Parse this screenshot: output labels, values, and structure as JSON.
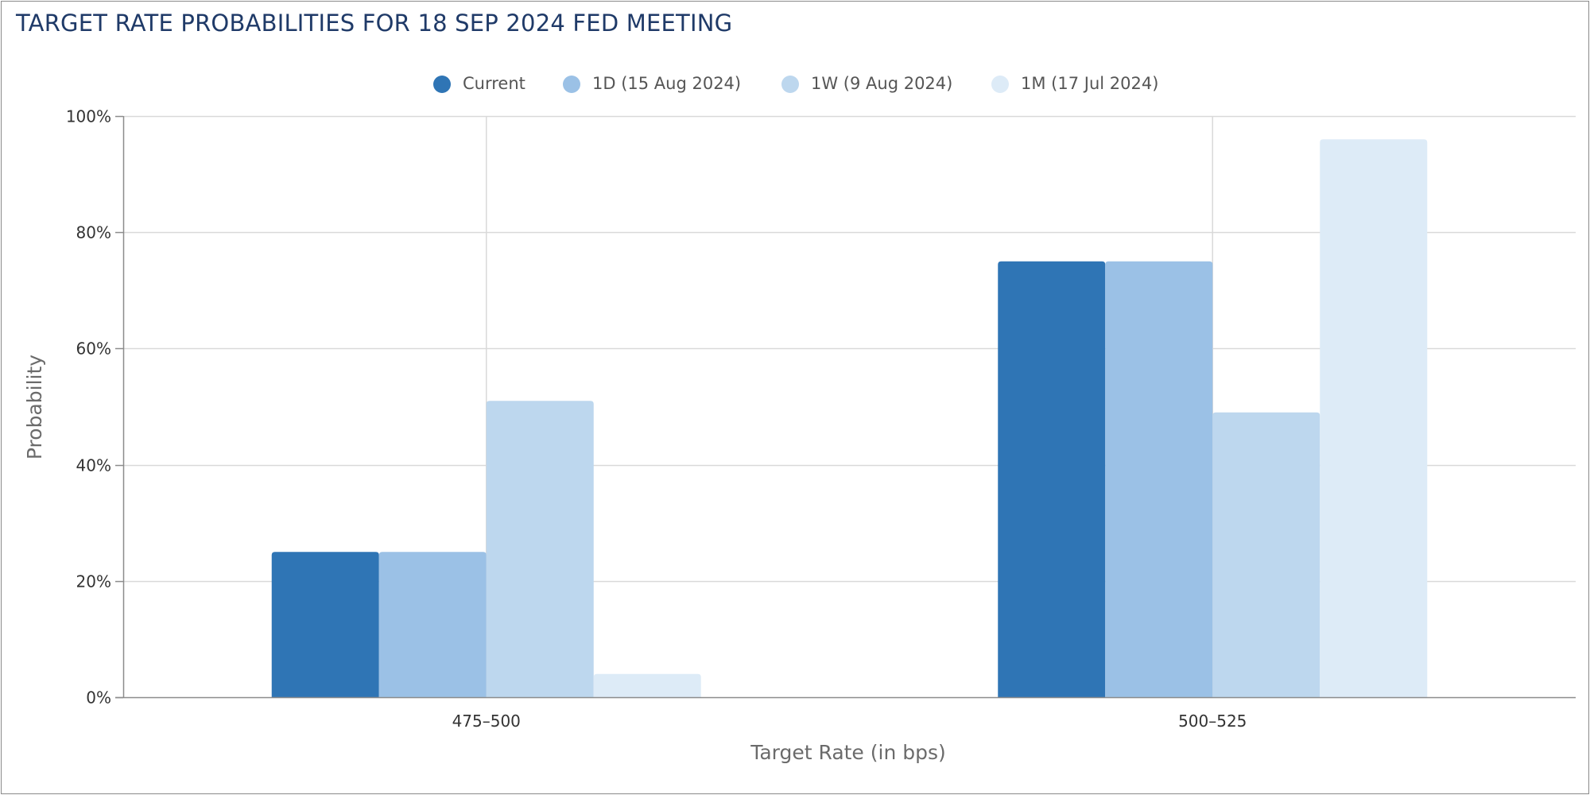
{
  "chart_data": {
    "type": "bar",
    "title": "TARGET RATE PROBABILITIES FOR 18 SEP 2024 FED MEETING",
    "xlabel": "Target Rate (in bps)",
    "ylabel": "Probability",
    "categories": [
      "475–500",
      "500–525"
    ],
    "ylim": [
      0,
      100
    ],
    "yticks": [
      0,
      20,
      40,
      60,
      80,
      100
    ],
    "ytick_labels": [
      "0%",
      "20%",
      "40%",
      "60%",
      "80%",
      "100%"
    ],
    "grid": true,
    "legend_position": "top-center",
    "series": [
      {
        "name": "Current",
        "values": [
          25,
          75
        ],
        "color": "#2f75b5"
      },
      {
        "name": "1D (15 Aug 2024)",
        "values": [
          25,
          75
        ],
        "color": "#9bc1e6"
      },
      {
        "name": "1W (9 Aug 2024)",
        "values": [
          51,
          49
        ],
        "color": "#bdd7ee"
      },
      {
        "name": "1M (17 Jul 2024)",
        "values": [
          4,
          96
        ],
        "color": "#ddebf7"
      }
    ]
  }
}
